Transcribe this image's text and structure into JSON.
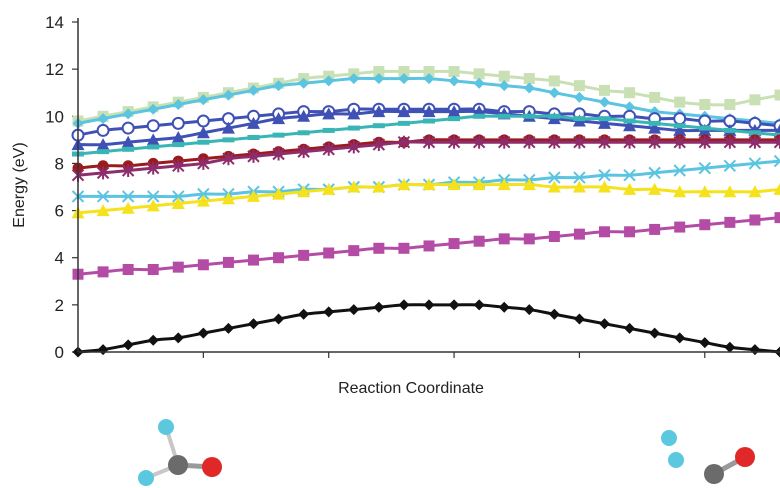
{
  "chart_data": {
    "type": "line",
    "title": "",
    "xlabel": "Reaction Coordinate",
    "ylabel": "Energy (eV)",
    "ylim": [
      0,
      14
    ],
    "yticks": [
      "0",
      "2",
      "4",
      "6",
      "8",
      "10",
      "12",
      "14"
    ],
    "grid": false,
    "legend": "none",
    "x": [
      0,
      1,
      2,
      3,
      4,
      5,
      6,
      7,
      8,
      9,
      10,
      11,
      12,
      13,
      14,
      15,
      16,
      17,
      18,
      19,
      20,
      21,
      22,
      23,
      24,
      25,
      26,
      27,
      28
    ],
    "series": [
      {
        "color": "#c8e0b4",
        "marker": "square",
        "values": [
          9.8,
          10.0,
          10.2,
          10.4,
          10.6,
          10.8,
          11.0,
          11.2,
          11.4,
          11.6,
          11.7,
          11.8,
          11.9,
          11.9,
          11.9,
          11.9,
          11.8,
          11.7,
          11.6,
          11.5,
          11.3,
          11.1,
          11.0,
          10.8,
          10.6,
          10.5,
          10.5,
          10.7,
          10.9
        ]
      },
      {
        "color": "#5bc4e0",
        "marker": "diamond",
        "values": [
          9.7,
          9.9,
          10.1,
          10.3,
          10.5,
          10.7,
          10.9,
          11.1,
          11.3,
          11.4,
          11.5,
          11.6,
          11.6,
          11.6,
          11.6,
          11.5,
          11.4,
          11.3,
          11.2,
          11.0,
          10.8,
          10.6,
          10.4,
          10.2,
          10.1,
          10.0,
          9.9,
          9.8,
          9.7
        ]
      },
      {
        "color": "#3f51b5",
        "marker": "circle",
        "values": [
          9.2,
          9.4,
          9.5,
          9.6,
          9.7,
          9.8,
          9.9,
          10.0,
          10.1,
          10.2,
          10.2,
          10.3,
          10.3,
          10.3,
          10.3,
          10.3,
          10.3,
          10.2,
          10.2,
          10.1,
          10.1,
          10.0,
          10.0,
          9.9,
          9.9,
          9.8,
          9.8,
          9.7,
          9.6
        ]
      },
      {
        "color": "#3f51b5",
        "marker": "triangle",
        "values": [
          8.8,
          8.8,
          8.9,
          9.0,
          9.1,
          9.3,
          9.5,
          9.7,
          9.9,
          10.0,
          10.1,
          10.1,
          10.2,
          10.2,
          10.2,
          10.2,
          10.2,
          10.1,
          10.0,
          9.9,
          9.8,
          9.7,
          9.6,
          9.5,
          9.4,
          9.4,
          9.4,
          9.4,
          9.4
        ]
      },
      {
        "color": "#3ab5b5",
        "marker": "dash",
        "values": [
          8.4,
          8.5,
          8.6,
          8.7,
          8.8,
          8.9,
          9.0,
          9.1,
          9.2,
          9.3,
          9.4,
          9.5,
          9.6,
          9.7,
          9.8,
          9.9,
          10.0,
          10.0,
          10.0,
          10.0,
          9.9,
          9.9,
          9.8,
          9.7,
          9.6,
          9.5,
          9.4,
          9.3,
          9.2
        ]
      },
      {
        "color": "#9b1b1b",
        "marker": "circle-filled",
        "values": [
          7.8,
          7.9,
          7.9,
          8.0,
          8.1,
          8.2,
          8.3,
          8.4,
          8.5,
          8.6,
          8.7,
          8.8,
          8.9,
          8.9,
          9.0,
          9.0,
          9.0,
          9.0,
          9.0,
          9.0,
          9.0,
          9.0,
          9.0,
          9.0,
          9.0,
          9.0,
          9.0,
          9.0,
          9.0
        ]
      },
      {
        "color": "#8e2d6d",
        "marker": "star",
        "values": [
          7.5,
          7.6,
          7.7,
          7.8,
          7.9,
          8.0,
          8.2,
          8.3,
          8.4,
          8.5,
          8.6,
          8.7,
          8.8,
          8.9,
          8.9,
          8.9,
          8.9,
          8.9,
          8.9,
          8.9,
          8.9,
          8.9,
          8.9,
          8.9,
          8.9,
          8.9,
          8.9,
          8.9,
          8.9
        ]
      },
      {
        "color": "#5bc4e0",
        "marker": "x",
        "values": [
          6.6,
          6.6,
          6.6,
          6.6,
          6.6,
          6.7,
          6.7,
          6.8,
          6.8,
          6.9,
          6.9,
          7.0,
          7.0,
          7.1,
          7.1,
          7.2,
          7.2,
          7.3,
          7.3,
          7.4,
          7.4,
          7.5,
          7.5,
          7.6,
          7.7,
          7.8,
          7.9,
          8.0,
          8.1
        ]
      },
      {
        "color": "#f5e21c",
        "marker": "triangle",
        "values": [
          5.9,
          6.0,
          6.1,
          6.2,
          6.3,
          6.4,
          6.5,
          6.6,
          6.7,
          6.8,
          6.9,
          7.0,
          7.0,
          7.1,
          7.1,
          7.1,
          7.1,
          7.1,
          7.1,
          7.0,
          7.0,
          7.0,
          6.9,
          6.9,
          6.8,
          6.8,
          6.8,
          6.8,
          6.9
        ]
      },
      {
        "color": "#b44ca5",
        "marker": "square",
        "values": [
          3.3,
          3.4,
          3.5,
          3.5,
          3.6,
          3.7,
          3.8,
          3.9,
          4.0,
          4.1,
          4.2,
          4.3,
          4.4,
          4.4,
          4.5,
          4.6,
          4.7,
          4.8,
          4.8,
          4.9,
          5.0,
          5.1,
          5.1,
          5.2,
          5.3,
          5.4,
          5.5,
          5.6,
          5.7
        ]
      },
      {
        "color": "#111111",
        "marker": "diamond",
        "values": [
          0.0,
          0.1,
          0.3,
          0.5,
          0.6,
          0.8,
          1.0,
          1.2,
          1.4,
          1.6,
          1.7,
          1.8,
          1.9,
          2.0,
          2.0,
          2.0,
          2.0,
          1.9,
          1.8,
          1.6,
          1.4,
          1.2,
          1.0,
          0.8,
          0.6,
          0.4,
          0.2,
          0.1,
          0.0
        ]
      }
    ]
  },
  "molecules": {
    "left": {
      "atoms": [
        {
          "color": "#5bc8df"
        },
        {
          "color": "#5bc8df"
        },
        {
          "color": "#6b6b6b"
        },
        {
          "color": "#e02828"
        }
      ]
    },
    "right": {
      "atoms": [
        {
          "color": "#5bc8df"
        },
        {
          "color": "#5bc8df"
        },
        {
          "color": "#6b6b6b"
        },
        {
          "color": "#e02828"
        }
      ]
    }
  }
}
